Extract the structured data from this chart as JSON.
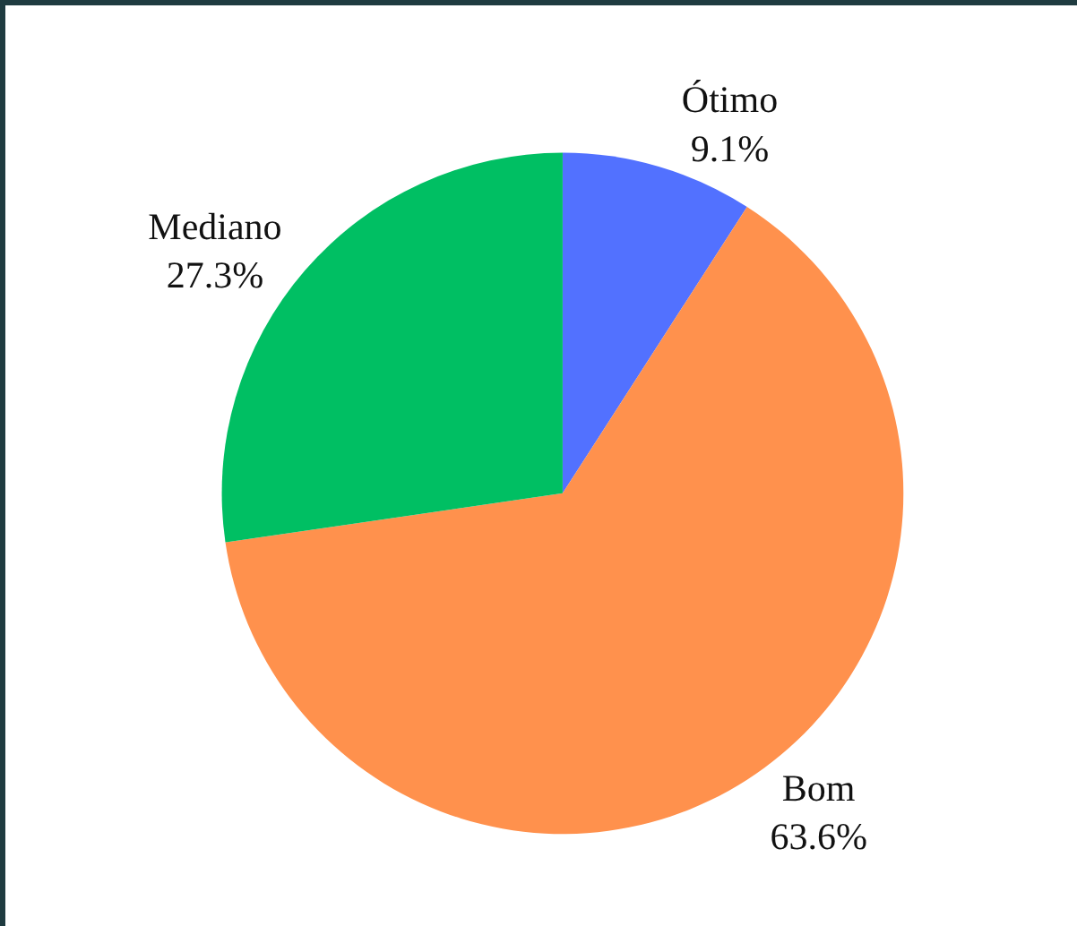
{
  "chart_data": {
    "type": "pie",
    "categories": [
      "Ótimo",
      "Bom",
      "Mediano"
    ],
    "values": [
      9.1,
      63.6,
      27.3
    ],
    "colors": [
      "#5271ff",
      "#ff914d",
      "#00bf63"
    ],
    "value_labels": [
      "9.1%",
      "63.6%",
      "27.3%"
    ],
    "legend": false
  }
}
